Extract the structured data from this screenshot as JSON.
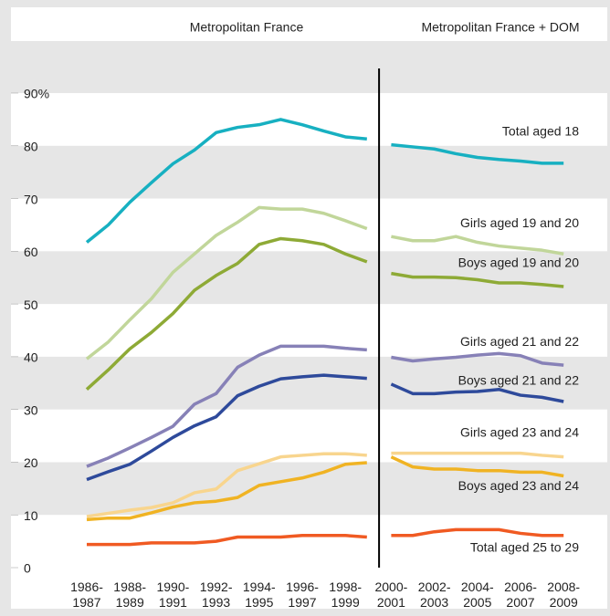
{
  "chart_data": {
    "type": "line",
    "sections": [
      {
        "label": "Metropolitan France",
        "categories": [
          "1986-1987",
          null,
          "1988-1989",
          null,
          "1990-1991",
          null,
          "1992-1993",
          null,
          "1994-1995",
          null,
          "1996-1997",
          null,
          "1998-1999",
          null
        ]
      },
      {
        "label": "Metropolitan France + DOM",
        "categories": [
          "2000-2001",
          null,
          "2002-2003",
          null,
          "2004-2005",
          null,
          "2006-2007",
          null,
          "2008-2009"
        ]
      }
    ],
    "ylim": [
      0,
      90
    ],
    "yticks": [
      0,
      10,
      20,
      30,
      40,
      50,
      60,
      70,
      80,
      {
        "value": 90,
        "label": "90%"
      }
    ],
    "series": [
      {
        "name": "Total aged 18",
        "color": "#17b0c1",
        "values": [
          61.7,
          65,
          69.3,
          73,
          76.6,
          79.2,
          82.5,
          83.5,
          84,
          85,
          84,
          82.8,
          81.7,
          81.3,
          80.2,
          79.8,
          79.4,
          78.5,
          77.8,
          77.4,
          77.1,
          76.7,
          76.7
        ]
      },
      {
        "name": "Girls aged 19 and 20",
        "color": "#c1d69a",
        "values": [
          39.6,
          42.8,
          47,
          51,
          56,
          59.5,
          63,
          65.5,
          68.3,
          68,
          68,
          67.2,
          65.8,
          64.3,
          62.8,
          62,
          62,
          62.8,
          61.7,
          61,
          60.6,
          60.2,
          59.5
        ]
      },
      {
        "name": "Boys aged 19 and 20",
        "color": "#8eaa36",
        "values": [
          33.8,
          37.5,
          41.5,
          44.6,
          48.2,
          52.6,
          55.4,
          57.7,
          61.3,
          62.4,
          62,
          61.3,
          59.5,
          58,
          55.8,
          55.1,
          55.1,
          55,
          54.6,
          54,
          54,
          53.7,
          53.3
        ]
      },
      {
        "name": "Girls aged 21 and 22",
        "color": "#8781b7",
        "values": [
          19.2,
          20.8,
          22.7,
          24.7,
          26.8,
          31,
          33,
          38,
          40.3,
          42,
          42,
          42,
          41.6,
          41.3,
          39.9,
          39.2,
          39.6,
          39.9,
          40.3,
          40.6,
          40.2,
          38.8,
          38.4
        ]
      },
      {
        "name": "Boys aged 21 and 22",
        "color": "#2e4a9b",
        "values": [
          16.7,
          18.2,
          19.6,
          22.1,
          24.7,
          26.9,
          28.6,
          32.6,
          34.4,
          35.8,
          36.2,
          36.5,
          36.2,
          35.9,
          34.8,
          33,
          33,
          33.3,
          33.4,
          33.8,
          32.7,
          32.3,
          31.5
        ]
      },
      {
        "name": "Girls aged 23 and 24",
        "color": "#f8d58e",
        "values": [
          9.7,
          10.3,
          10.9,
          11.4,
          12.3,
          14.2,
          14.9,
          18.4,
          19.7,
          21,
          21.3,
          21.6,
          21.6,
          21.3,
          21.7,
          21.7,
          21.7,
          21.7,
          21.7,
          21.7,
          21.7,
          21.3,
          21
        ]
      },
      {
        "name": "Boys aged 23 and 24",
        "color": "#f0b323",
        "values": [
          9.1,
          9.4,
          9.4,
          10.4,
          11.5,
          12.3,
          12.6,
          13.3,
          15.6,
          16.3,
          17,
          18.1,
          19.6,
          19.9,
          21,
          19.1,
          18.7,
          18.7,
          18.4,
          18.4,
          18.1,
          18.1,
          17.4
        ]
      },
      {
        "name": "Total aged 25 to 29",
        "color": "#f05a22",
        "values": [
          4.4,
          4.4,
          4.4,
          4.7,
          4.7,
          4.7,
          5,
          5.8,
          5.8,
          5.8,
          6.1,
          6.1,
          6.1,
          5.8,
          6.1,
          6.1,
          6.8,
          7.2,
          7.2,
          7.2,
          6.5,
          6.1,
          6.1
        ]
      }
    ]
  }
}
